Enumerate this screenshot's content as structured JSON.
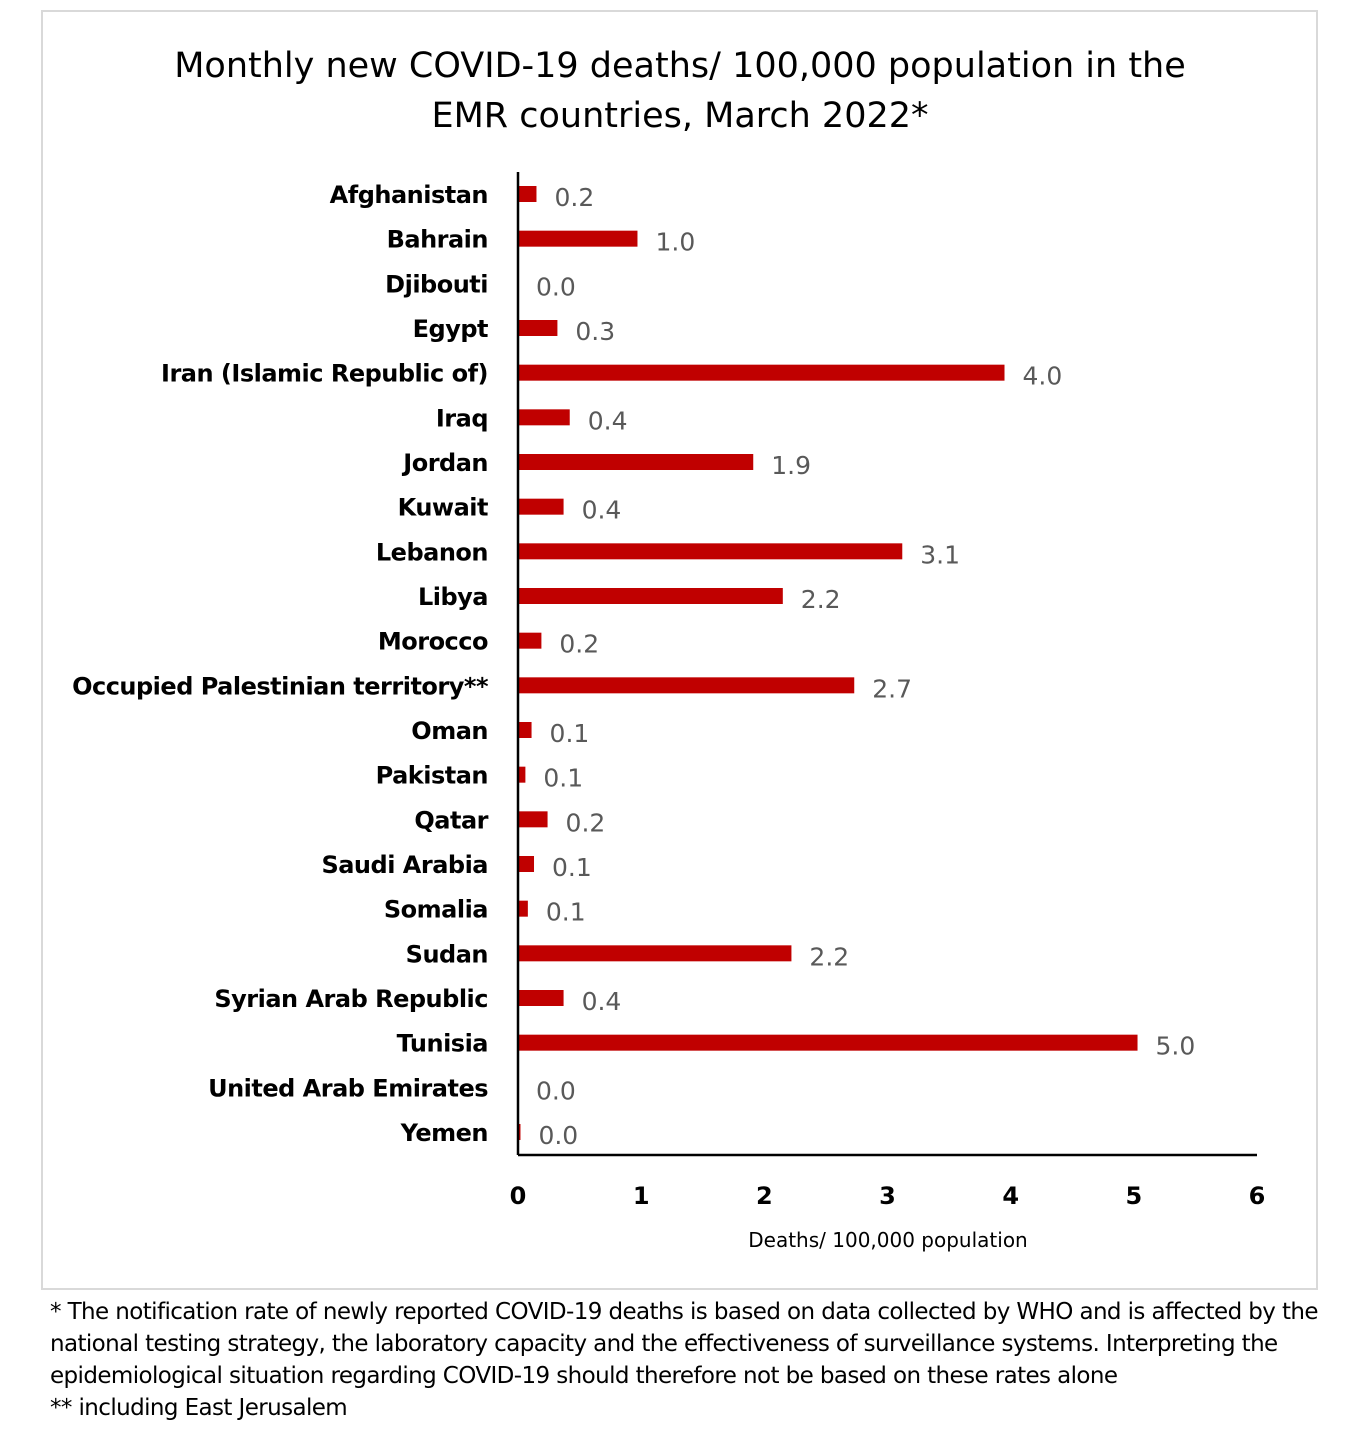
{
  "chart_data": {
    "type": "bar",
    "orientation": "horizontal",
    "title": [
      "Monthly new COVID-19 deaths/ 100,000 population in the",
      "EMR countries, March 2022*"
    ],
    "xlabel": "Deaths/ 100,000 population",
    "ylabel": "",
    "xlim": [
      0,
      6
    ],
    "xticks": [
      "0",
      "1",
      "2",
      "3",
      "4",
      "5",
      "6"
    ],
    "grid": false,
    "bar_color": "#c00000",
    "categories": [
      "Afghanistan",
      "Bahrain",
      "Djibouti",
      "Egypt",
      "Iran (Islamic Republic of)",
      "Iraq",
      "Jordan",
      "Kuwait",
      "Lebanon",
      "Libya",
      "Morocco",
      "Occupied Palestinian territory**",
      "Oman",
      "Pakistan",
      "Qatar",
      "Saudi Arabia",
      "Somalia",
      "Sudan",
      "Syrian Arab Republic",
      "Tunisia",
      "United Arab Emirates",
      "Yemen"
    ],
    "values": [
      0.15,
      0.97,
      0.0,
      0.32,
      3.95,
      0.42,
      1.91,
      0.37,
      3.12,
      2.15,
      0.19,
      2.73,
      0.11,
      0.06,
      0.24,
      0.13,
      0.08,
      2.22,
      0.37,
      5.03,
      0.0,
      0.02
    ],
    "data_labels": [
      "0.2",
      "1.0",
      "0.0",
      "0.3",
      "4.0",
      "0.4",
      "1.9",
      "0.4",
      "3.1",
      "2.2",
      "0.2",
      "2.7",
      "0.1",
      "0.1",
      "0.2",
      "0.1",
      "0.1",
      "2.2",
      "0.4",
      "5.0",
      "0.0",
      "0.0"
    ]
  },
  "footnotes": [
    "* The notification rate of newly reported COVID-19 deaths is based on data collected by WHO and is affected by the",
    "national testing strategy, the laboratory capacity and the effectiveness of surveillance systems. Interpreting the",
    "epidemiological situation regarding COVID-19 should therefore not be based on these rates alone",
    "** including East Jerusalem"
  ]
}
